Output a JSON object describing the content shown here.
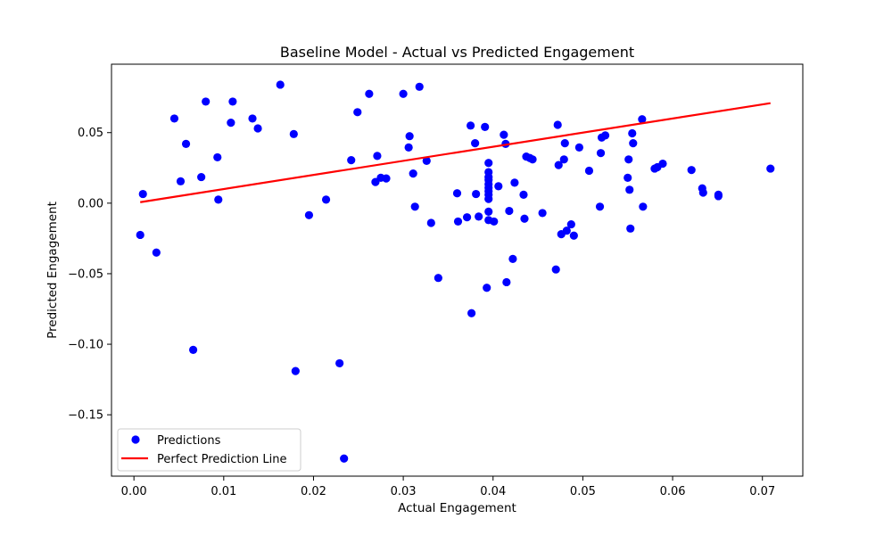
{
  "chart_data": {
    "type": "scatter",
    "title": "Baseline Model - Actual vs Predicted Engagement",
    "xlabel": "Actual Engagement",
    "ylabel": "Predicted Engagement",
    "xlim": [
      -0.0025,
      0.0745
    ],
    "ylim": [
      -0.1935,
      0.0985
    ],
    "xticks": [
      0.0,
      0.01,
      0.02,
      0.03,
      0.04,
      0.05,
      0.06,
      0.07
    ],
    "xtick_labels": [
      "0.00",
      "0.01",
      "0.02",
      "0.03",
      "0.04",
      "0.05",
      "0.06",
      "0.07"
    ],
    "yticks": [
      -0.15,
      -0.1,
      -0.05,
      0.0,
      0.05
    ],
    "ytick_labels": [
      "−0.15",
      "−0.10",
      "−0.05",
      "0.00",
      "0.05"
    ],
    "grid": false,
    "legend_position": "lower-left",
    "series": [
      {
        "name": "Predictions",
        "kind": "scatter",
        "color": "#0000ff",
        "points": [
          [
            0.0007,
            -0.0225
          ],
          [
            0.001,
            0.0065
          ],
          [
            0.0025,
            -0.035
          ],
          [
            0.0045,
            0.06
          ],
          [
            0.0052,
            0.0155
          ],
          [
            0.0058,
            0.042
          ],
          [
            0.0066,
            -0.104
          ],
          [
            0.0075,
            0.0185
          ],
          [
            0.008,
            0.072
          ],
          [
            0.0093,
            0.0325
          ],
          [
            0.0094,
            0.0025
          ],
          [
            0.0108,
            0.057
          ],
          [
            0.011,
            0.072
          ],
          [
            0.0132,
            0.06
          ],
          [
            0.0138,
            0.053
          ],
          [
            0.0163,
            0.084
          ],
          [
            0.0178,
            0.049
          ],
          [
            0.018,
            -0.119
          ],
          [
            0.0195,
            -0.0085
          ],
          [
            0.0214,
            0.0025
          ],
          [
            0.0229,
            -0.1135
          ],
          [
            0.0234,
            -0.181
          ],
          [
            0.0242,
            0.0305
          ],
          [
            0.0249,
            0.0645
          ],
          [
            0.0262,
            0.0775
          ],
          [
            0.0269,
            0.015
          ],
          [
            0.0271,
            0.0335
          ],
          [
            0.0275,
            0.018
          ],
          [
            0.0281,
            0.0175
          ],
          [
            0.03,
            0.0775
          ],
          [
            0.0306,
            0.0395
          ],
          [
            0.0307,
            0.0475
          ],
          [
            0.0311,
            0.021
          ],
          [
            0.0313,
            -0.0025
          ],
          [
            0.0318,
            0.0825
          ],
          [
            0.0326,
            0.03
          ],
          [
            0.0331,
            -0.014
          ],
          [
            0.0339,
            -0.053
          ],
          [
            0.036,
            0.007
          ],
          [
            0.0361,
            -0.013
          ],
          [
            0.0371,
            -0.01
          ],
          [
            0.0375,
            0.055
          ],
          [
            0.0376,
            -0.078
          ],
          [
            0.038,
            0.0425
          ],
          [
            0.0381,
            0.0065
          ],
          [
            0.0384,
            -0.0095
          ],
          [
            0.0391,
            0.054
          ],
          [
            0.0393,
            -0.06
          ],
          [
            0.0395,
            0.0285
          ],
          [
            0.0395,
            0.022
          ],
          [
            0.0395,
            0.0185
          ],
          [
            0.0395,
            0.0165
          ],
          [
            0.0395,
            0.0135
          ],
          [
            0.0395,
            0.011
          ],
          [
            0.0395,
            0.0085
          ],
          [
            0.0395,
            0.006
          ],
          [
            0.0395,
            0.003
          ],
          [
            0.0395,
            -0.006
          ],
          [
            0.0395,
            -0.012
          ],
          [
            0.0401,
            -0.013
          ],
          [
            0.0406,
            0.012
          ],
          [
            0.0412,
            0.0485
          ],
          [
            0.0414,
            0.042
          ],
          [
            0.0415,
            -0.056
          ],
          [
            0.0418,
            -0.0055
          ],
          [
            0.0422,
            -0.0395
          ],
          [
            0.0424,
            0.0145
          ],
          [
            0.0434,
            0.006
          ],
          [
            0.0435,
            -0.011
          ],
          [
            0.0437,
            0.033
          ],
          [
            0.0441,
            0.032
          ],
          [
            0.0444,
            0.031
          ],
          [
            0.0455,
            -0.007
          ],
          [
            0.047,
            -0.047
          ],
          [
            0.0472,
            0.0555
          ],
          [
            0.0473,
            0.027
          ],
          [
            0.0476,
            -0.022
          ],
          [
            0.0479,
            0.031
          ],
          [
            0.048,
            0.0425
          ],
          [
            0.0482,
            -0.0195
          ],
          [
            0.0487,
            -0.015
          ],
          [
            0.049,
            -0.023
          ],
          [
            0.0496,
            0.0395
          ],
          [
            0.0507,
            0.023
          ],
          [
            0.0519,
            -0.0025
          ],
          [
            0.052,
            0.0355
          ],
          [
            0.0521,
            0.0465
          ],
          [
            0.0525,
            0.048
          ],
          [
            0.055,
            0.018
          ],
          [
            0.0551,
            0.031
          ],
          [
            0.0552,
            0.0095
          ],
          [
            0.0553,
            -0.018
          ],
          [
            0.0555,
            0.0495
          ],
          [
            0.0556,
            0.0425
          ],
          [
            0.0566,
            0.0595
          ],
          [
            0.0567,
            -0.0025
          ],
          [
            0.058,
            0.0245
          ],
          [
            0.0583,
            0.0255
          ],
          [
            0.0589,
            0.028
          ],
          [
            0.0621,
            0.0235
          ],
          [
            0.0633,
            0.0105
          ],
          [
            0.0634,
            0.0075
          ],
          [
            0.0651,
            0.006
          ],
          [
            0.0651,
            0.005
          ],
          [
            0.0709,
            0.0245
          ]
        ]
      },
      {
        "name": "Perfect Prediction Line",
        "kind": "line",
        "color": "#ff0000",
        "points": [
          [
            0.0007,
            0.0007
          ],
          [
            0.0709,
            0.0709
          ]
        ]
      }
    ]
  }
}
